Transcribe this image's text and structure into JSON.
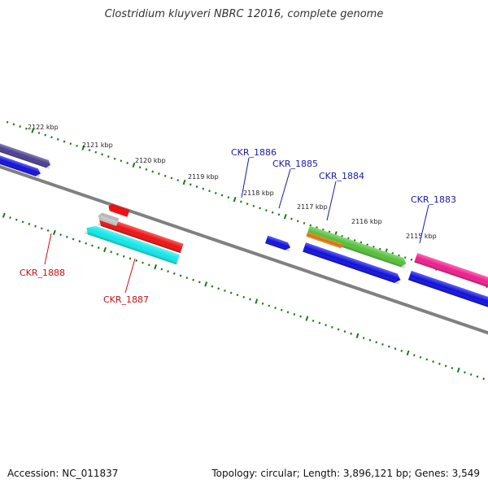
{
  "title": "Clostridium kluyveri NBRC 12016, complete genome",
  "footer": {
    "accession": "Accession: NC_011837",
    "summary": "Topology: circular; Length: 3,896,121 bp; Genes: 3,549"
  },
  "ticks": [
    "2122 kbp",
    "2121 kbp",
    "2120 kbp",
    "2119 kbp",
    "2118 kbp",
    "2117 kbp",
    "2116 kbp",
    "2115 kbp"
  ],
  "gene_labels": {
    "forward": [
      "CKR_1886",
      "CKR_1885",
      "CKR_1884",
      "CKR_1883"
    ],
    "reverse": [
      "CKR_1888",
      "CKR_1887"
    ]
  },
  "colors": {
    "backbone": "#808080",
    "tick": "#1a7a1a",
    "forward_label": "#1a1aa6",
    "reverse_label": "#cc1010",
    "blue": "#1010dd",
    "indigo": "#4a3f8f",
    "red": "#ee1111",
    "cyan": "#11e8e8",
    "green": "#55c03a",
    "orange": "#f08c1e",
    "magenta": "#ee1e8c",
    "grey": "#b8b8b8"
  }
}
